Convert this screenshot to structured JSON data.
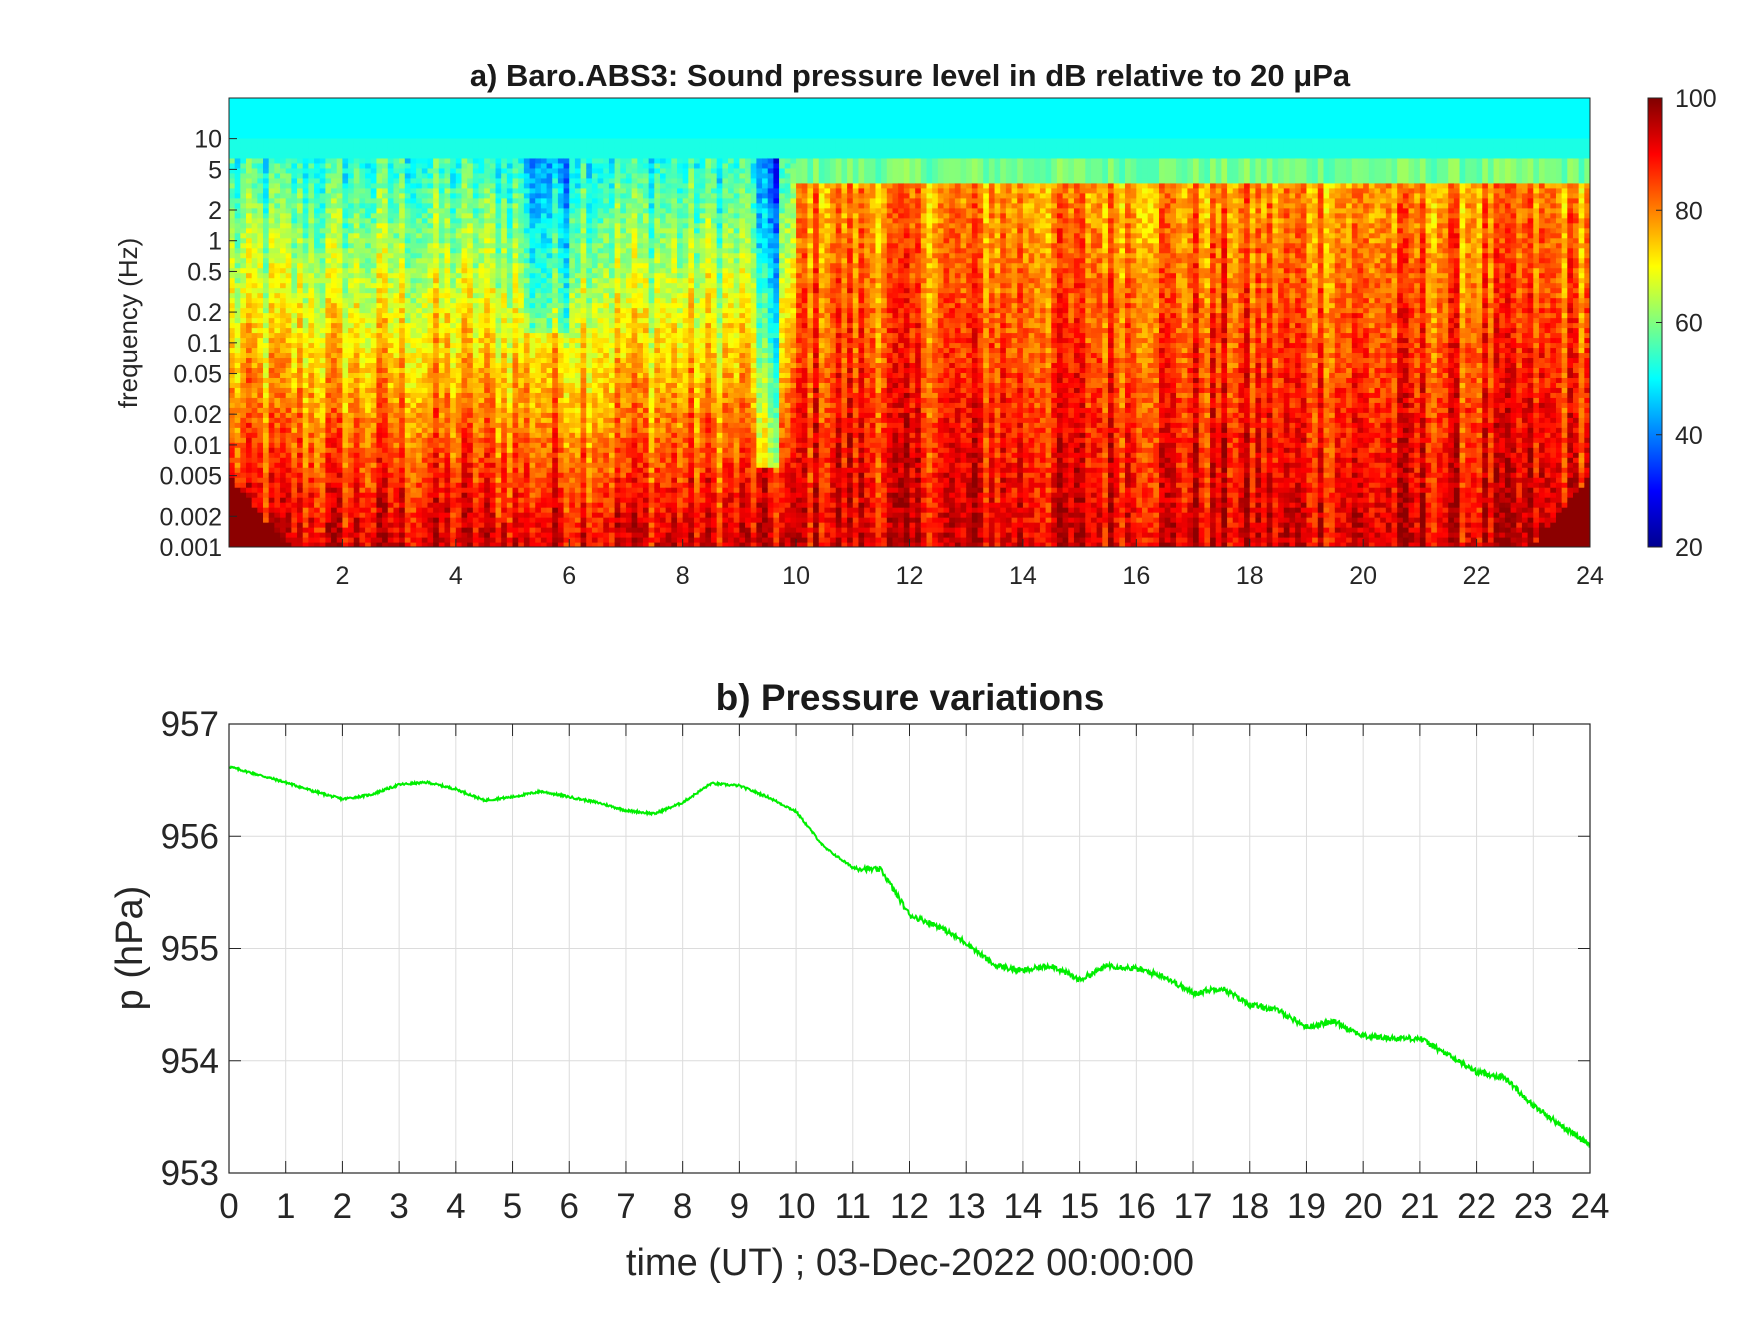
{
  "chart_data": [
    {
      "type": "heatmap",
      "title": "a) Baro.ABS3: Sound pressure level in dB relative to 20 μPa",
      "xlabel": "",
      "ylabel": "frequency (Hz)",
      "x_ticks": [
        "2",
        "4",
        "6",
        "8",
        "10",
        "12",
        "14",
        "16",
        "18",
        "20",
        "22",
        "24"
      ],
      "x_tick_values": [
        2,
        4,
        6,
        8,
        10,
        12,
        14,
        16,
        18,
        20,
        22,
        24
      ],
      "xlim": [
        0,
        24
      ],
      "y_scale": "log",
      "y_ticks": [
        "0.001",
        "0.002",
        "0.005",
        "0.01",
        "0.02",
        "0.05",
        "0.1",
        "0.2",
        "0.5",
        "1",
        "2",
        "5",
        "10"
      ],
      "y_tick_values": [
        0.001,
        0.002,
        0.005,
        0.01,
        0.02,
        0.05,
        0.1,
        0.2,
        0.5,
        1,
        2,
        5,
        10
      ],
      "ylim": [
        0.001,
        25
      ],
      "colorbar": {
        "ticks": [
          "20",
          "40",
          "60",
          "80",
          "100"
        ],
        "tick_values": [
          20,
          40,
          60,
          80,
          100
        ],
        "range": [
          20,
          100
        ],
        "colormap": "jet"
      },
      "intensity_profile": {
        "description_levels_dB": {
          "above_5Hz": 50,
          "quiet_period_0_10h_at_2Hz": 42,
          "active_period_10_24h_at_0.1Hz": 88,
          "below_0.002Hz": 93
        }
      }
    },
    {
      "type": "line",
      "title": "b) Pressure variations",
      "xlabel": "time (UT) ; 03-Dec-2022 00:00:00",
      "ylabel": "p (hPa)",
      "xlim": [
        0,
        24
      ],
      "ylim": [
        953,
        957
      ],
      "x_ticks": [
        "0",
        "1",
        "2",
        "3",
        "4",
        "5",
        "6",
        "7",
        "8",
        "9",
        "10",
        "11",
        "12",
        "13",
        "14",
        "15",
        "16",
        "17",
        "18",
        "19",
        "20",
        "21",
        "22",
        "23",
        "24"
      ],
      "x_tick_values": [
        0,
        1,
        2,
        3,
        4,
        5,
        6,
        7,
        8,
        9,
        10,
        11,
        12,
        13,
        14,
        15,
        16,
        17,
        18,
        19,
        20,
        21,
        22,
        23,
        24
      ],
      "y_ticks": [
        "953",
        "954",
        "955",
        "956",
        "957"
      ],
      "y_tick_values": [
        953,
        954,
        955,
        956,
        957
      ],
      "grid": true,
      "color": "#00ee00",
      "series": [
        {
          "x": [
            0,
            0.5,
            1,
            1.5,
            2,
            2.5,
            3,
            3.5,
            4,
            4.5,
            5,
            5.5,
            6,
            6.5,
            7,
            7.5,
            8,
            8.5,
            9,
            9.5,
            10,
            10.5,
            11,
            11.5,
            12,
            12.5,
            13,
            13.5,
            14,
            14.5,
            15,
            15.5,
            16,
            16.5,
            17,
            17.5,
            18,
            18.5,
            19,
            19.5,
            20,
            20.5,
            21,
            21.5,
            22,
            22.5,
            23,
            23.5,
            24
          ],
          "values": [
            956.62,
            956.55,
            956.48,
            956.4,
            956.33,
            956.37,
            956.46,
            956.48,
            956.42,
            956.32,
            956.35,
            956.4,
            956.35,
            956.3,
            956.23,
            956.2,
            956.3,
            956.47,
            956.45,
            956.35,
            956.22,
            955.9,
            955.72,
            955.7,
            955.3,
            955.2,
            955.05,
            954.85,
            954.8,
            954.85,
            954.72,
            954.85,
            954.82,
            954.75,
            954.6,
            954.65,
            954.5,
            954.45,
            954.3,
            954.35,
            954.22,
            954.2,
            954.2,
            954.05,
            953.9,
            953.85,
            953.6,
            953.42,
            953.25
          ]
        }
      ]
    }
  ]
}
